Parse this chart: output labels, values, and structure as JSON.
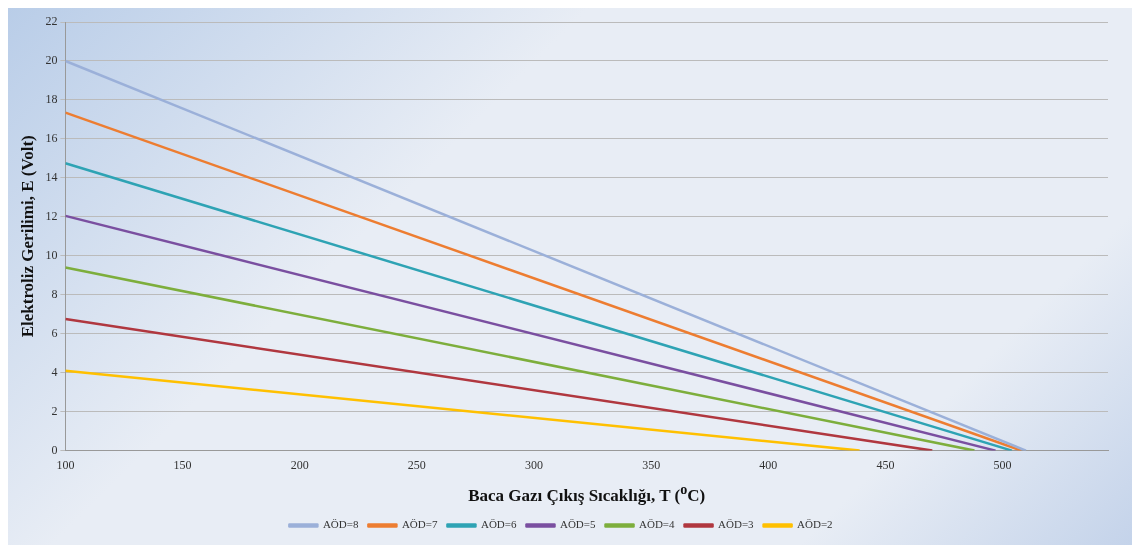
{
  "chart_data": {
    "type": "line",
    "xlabel": "Baca Gazı Çıkış Sıcaklığı, T ($^{o}$C)",
    "ylabel": "Elektroliz Gerilimi, E (Volt)",
    "xlim": [
      100,
      545
    ],
    "xticks": [
      100,
      150,
      200,
      250,
      300,
      350,
      400,
      450,
      500
    ],
    "ylim": [
      0,
      22
    ],
    "yticks": [
      0,
      2,
      4,
      6,
      8,
      10,
      12,
      14,
      16,
      18,
      20,
      22
    ],
    "grid": "y",
    "legend": "bottom",
    "marker": "none",
    "line_style": "solid",
    "series": [
      {
        "name": "AÖD=8",
        "color": "#9bb0d9",
        "x": [
          100,
          510
        ],
        "values": [
          20.0,
          0
        ]
      },
      {
        "name": "AÖD=7",
        "color": "#ed7d31",
        "x": [
          100,
          508
        ],
        "values": [
          17.35,
          0
        ]
      },
      {
        "name": "AÖD=6",
        "color": "#2ea3b4",
        "x": [
          100,
          504
        ],
        "values": [
          14.75,
          0
        ]
      },
      {
        "name": "AÖD=5",
        "color": "#7a4fa0",
        "x": [
          100,
          497
        ],
        "values": [
          12.05,
          0
        ]
      },
      {
        "name": "AÖD=4",
        "color": "#7dae3c",
        "x": [
          100,
          488
        ],
        "values": [
          9.4,
          0
        ]
      },
      {
        "name": "AÖD=3",
        "color": "#b0373f",
        "x": [
          100,
          470
        ],
        "values": [
          6.75,
          0
        ]
      },
      {
        "name": "AÖD=2",
        "color": "#ffc000",
        "x": [
          100,
          439
        ],
        "values": [
          4.1,
          0
        ]
      }
    ]
  }
}
